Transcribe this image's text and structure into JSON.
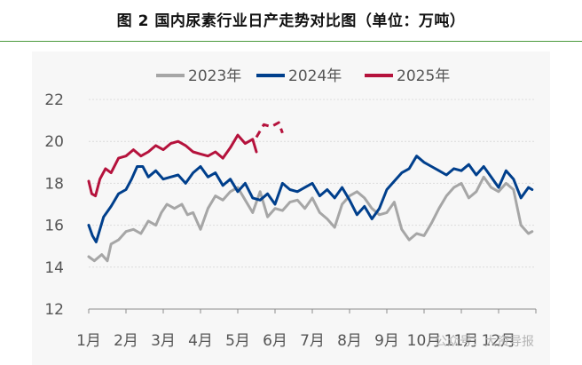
{
  "title": "图 2  国内尿素行业日产走势对比图（单位：万吨）",
  "watermark": "公众号：大资导报",
  "chart_data": {
    "type": "line",
    "title": "图 2  国内尿素行业日产走势对比图（单位：万吨）",
    "xlabel": "",
    "ylabel": "",
    "ylim": [
      12,
      22
    ],
    "yticks": [
      12,
      14,
      16,
      18,
      20,
      22
    ],
    "categories": [
      "1月",
      "2月",
      "3月",
      "4月",
      "5月",
      "6月",
      "7月",
      "8月",
      "9月",
      "10月",
      "11月",
      "12月"
    ],
    "x_unit": "month",
    "grid": true,
    "legend": "top-center",
    "series": [
      {
        "name": "2023年",
        "color": "#a6a6a6",
        "style": "solid",
        "x": [
          1.0,
          1.15,
          1.35,
          1.5,
          1.6,
          1.8,
          2.0,
          2.2,
          2.4,
          2.6,
          2.8,
          2.95,
          3.1,
          3.3,
          3.5,
          3.65,
          3.8,
          4.0,
          4.2,
          4.4,
          4.6,
          4.8,
          5.0,
          5.2,
          5.4,
          5.6,
          5.8,
          6.0,
          6.2,
          6.4,
          6.6,
          6.8,
          7.0,
          7.2,
          7.4,
          7.6,
          7.8,
          8.0,
          8.2,
          8.4,
          8.6,
          8.8,
          9.0,
          9.2,
          9.4,
          9.6,
          9.8,
          10.0,
          10.2,
          10.4,
          10.6,
          10.8,
          11.0,
          11.2,
          11.4,
          11.6,
          11.8,
          12.0,
          12.2,
          12.4,
          12.6,
          12.8
        ],
        "y": [
          14.5,
          14.3,
          14.6,
          14.3,
          15.1,
          15.3,
          15.7,
          15.8,
          15.6,
          16.2,
          16.0,
          16.6,
          17.0,
          16.8,
          17.0,
          16.5,
          16.6,
          15.8,
          16.8,
          17.4,
          17.2,
          17.6,
          17.8,
          17.2,
          16.6,
          17.6,
          16.4,
          16.8,
          16.7,
          17.1,
          17.2,
          16.8,
          17.3,
          16.6,
          16.3,
          15.9,
          17.0,
          17.4,
          17.6,
          17.3,
          16.8,
          16.5,
          16.6,
          17.1,
          15.8,
          15.3,
          15.6,
          15.5,
          16.1,
          16.8,
          17.4,
          17.8,
          18.0,
          17.3,
          17.6,
          18.3,
          17.8,
          17.6,
          18.0,
          17.7,
          16.0,
          15.6
        ],
        "extra_points": [
          [
            12.9,
            15.7
          ]
        ]
      },
      {
        "name": "2024年",
        "color": "#003f8c",
        "style": "solid",
        "x": [
          1.0,
          1.1,
          1.2,
          1.4,
          1.6,
          1.8,
          2.0,
          2.15,
          2.3,
          2.45,
          2.6,
          2.8,
          3.0,
          3.2,
          3.4,
          3.6,
          3.8,
          4.0,
          4.2,
          4.4,
          4.6,
          4.8,
          5.0,
          5.2,
          5.4,
          5.6,
          5.8,
          6.0,
          6.2,
          6.4,
          6.6,
          6.8,
          7.0,
          7.2,
          7.4,
          7.6,
          7.8,
          8.0,
          8.2,
          8.4,
          8.6,
          8.8,
          9.0,
          9.2,
          9.4,
          9.6,
          9.8,
          10.0,
          10.2,
          10.4,
          10.6,
          10.8,
          11.0,
          11.2,
          11.4,
          11.6,
          11.8,
          12.0,
          12.2,
          12.4,
          12.6,
          12.8
        ],
        "y": [
          16.0,
          15.5,
          15.2,
          16.4,
          16.9,
          17.5,
          17.7,
          18.2,
          18.8,
          18.8,
          18.3,
          18.6,
          18.2,
          18.3,
          18.4,
          18.0,
          18.5,
          18.8,
          18.3,
          18.5,
          17.9,
          18.2,
          17.6,
          18.0,
          17.3,
          17.2,
          17.5,
          17.0,
          18.0,
          17.7,
          17.6,
          17.8,
          18.0,
          17.4,
          17.7,
          17.3,
          17.8,
          17.2,
          16.5,
          16.9,
          16.3,
          16.8,
          17.7,
          18.1,
          18.5,
          18.7,
          19.3,
          19.0,
          18.8,
          18.6,
          18.4,
          18.7,
          18.6,
          18.9,
          18.4,
          18.8,
          18.3,
          17.8,
          18.6,
          18.2,
          17.3,
          17.8
        ],
        "extra_points": [
          [
            12.9,
            17.7
          ]
        ]
      },
      {
        "name": "2025年",
        "color": "#b5123c",
        "style": "solid",
        "x": [
          1.0,
          1.08,
          1.18,
          1.3,
          1.45,
          1.6,
          1.8,
          2.0,
          2.2,
          2.4,
          2.6,
          2.8,
          3.0,
          3.2,
          3.4,
          3.6,
          3.8,
          4.0,
          4.2,
          4.4,
          4.6,
          4.8,
          5.0,
          5.2,
          5.4,
          5.5
        ],
        "y": [
          18.1,
          17.5,
          17.4,
          18.2,
          18.7,
          18.5,
          19.2,
          19.3,
          19.6,
          19.3,
          19.5,
          19.8,
          19.6,
          19.9,
          20.0,
          19.8,
          19.5,
          19.4,
          19.3,
          19.5,
          19.2,
          19.7,
          20.3,
          19.9,
          20.1,
          19.5
        ]
      },
      {
        "name": "2025年",
        "color": "#b5123c",
        "style": "dashed",
        "x": [
          5.5,
          5.7,
          5.9,
          6.1,
          6.2
        ],
        "y": [
          20.2,
          20.8,
          20.7,
          20.9,
          20.4
        ]
      }
    ]
  }
}
